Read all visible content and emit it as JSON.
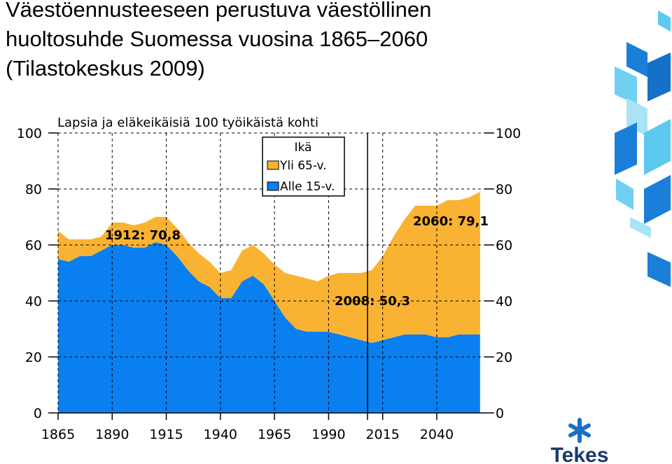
{
  "chart_data": {
    "type": "stacked_area",
    "title_lines": [
      "Väestöennusteeseen perustuva väestöllinen",
      "huoltosuhde Suomessa vuosina 1865–2060",
      "(Tilastokeskus 2009)"
    ],
    "subtitle": "Lapsia ja eläkeikäisiä 100 työikäistä kohti",
    "legend_title": "Ikä",
    "x": [
      1865,
      1870,
      1875,
      1880,
      1885,
      1890,
      1895,
      1900,
      1905,
      1910,
      1915,
      1920,
      1925,
      1930,
      1935,
      1940,
      1945,
      1950,
      1955,
      1960,
      1965,
      1970,
      1975,
      1980,
      1985,
      1990,
      1995,
      2000,
      2005,
      2010,
      2015,
      2020,
      2025,
      2030,
      2035,
      2040,
      2045,
      2050,
      2055,
      2060
    ],
    "series": [
      {
        "name": "Alle 15-v.",
        "color": "#0a7ff0",
        "values": [
          55,
          54,
          56,
          56,
          58,
          60,
          60,
          59,
          59,
          61,
          60,
          56,
          51,
          47,
          45,
          41,
          41,
          47,
          49,
          46,
          40,
          34,
          30,
          29,
          29,
          29,
          28,
          27,
          26,
          25,
          26,
          27,
          28,
          28,
          28,
          27,
          27,
          28,
          28,
          28
        ]
      },
      {
        "name": "Yli 65-v.",
        "color": "#f9b232",
        "values": [
          10,
          8,
          6,
          6,
          5,
          8,
          8,
          8,
          9,
          9,
          10,
          10,
          10,
          10,
          9,
          9,
          10,
          11,
          11,
          11,
          13,
          16,
          19,
          19,
          18,
          20,
          22,
          23,
          24,
          26,
          30,
          36,
          41,
          46,
          46,
          47,
          49,
          48,
          49,
          51
        ]
      }
    ],
    "xlim": [
      1865,
      2062
    ],
    "ylim": [
      0,
      100
    ],
    "xticks": [
      1865,
      1890,
      1915,
      1940,
      1965,
      1990,
      2015,
      2040
    ],
    "yticks": [
      0,
      20,
      40,
      60,
      80,
      100
    ],
    "vline": 2008,
    "annotations": [
      "1912: 70,8",
      "2008: 50,3",
      "2060: 79,1"
    ],
    "logo": "Tekes"
  }
}
